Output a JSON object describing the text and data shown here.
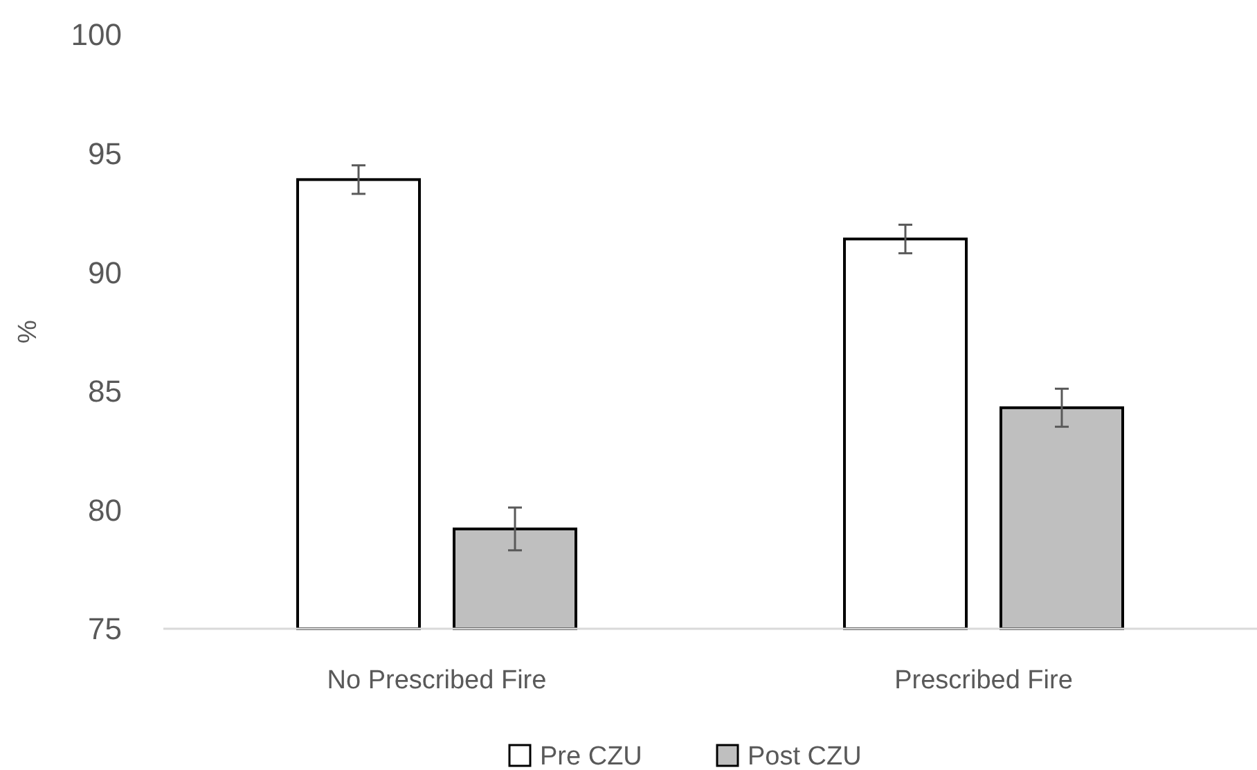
{
  "chart_data": {
    "type": "bar",
    "ylabel": "%",
    "categories": [
      "No Prescribed Fire",
      "Prescribed Fire"
    ],
    "series": [
      {
        "name": "Pre CZU",
        "color": "#ffffff",
        "values": [
          93.9,
          91.4
        ],
        "errors": [
          0.6,
          0.6
        ]
      },
      {
        "name": "Post CZU",
        "color": "#bfbfbf",
        "values": [
          79.2,
          84.3
        ],
        "errors": [
          0.9,
          0.8
        ]
      }
    ],
    "ylim": [
      75,
      100
    ],
    "yticks": [
      75,
      80,
      85,
      90,
      95,
      100
    ],
    "grid": false,
    "legend": "bottom"
  }
}
